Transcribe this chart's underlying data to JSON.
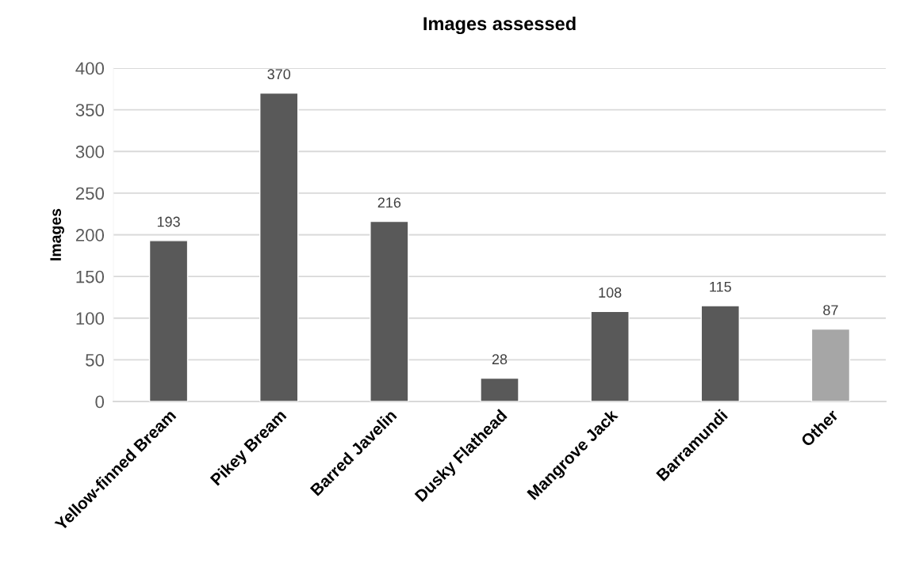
{
  "chart_data": {
    "type": "bar",
    "title": "Images assessed",
    "ylabel": "Images",
    "categories": [
      "Yellow-finned Bream",
      "Pikey Bream",
      "Barred Javelin",
      "Dusky Flathead",
      "Mangrove Jack",
      "Barramundi",
      "Other"
    ],
    "values": [
      193,
      370,
      216,
      28,
      108,
      115,
      87
    ],
    "colors": [
      "#595959",
      "#595959",
      "#595959",
      "#595959",
      "#595959",
      "#595959",
      "#a6a6a6"
    ],
    "ylim": [
      0,
      400
    ],
    "yticks": [
      0,
      50,
      100,
      150,
      200,
      250,
      300,
      350,
      400
    ],
    "grid": "y",
    "data_labels": true
  }
}
